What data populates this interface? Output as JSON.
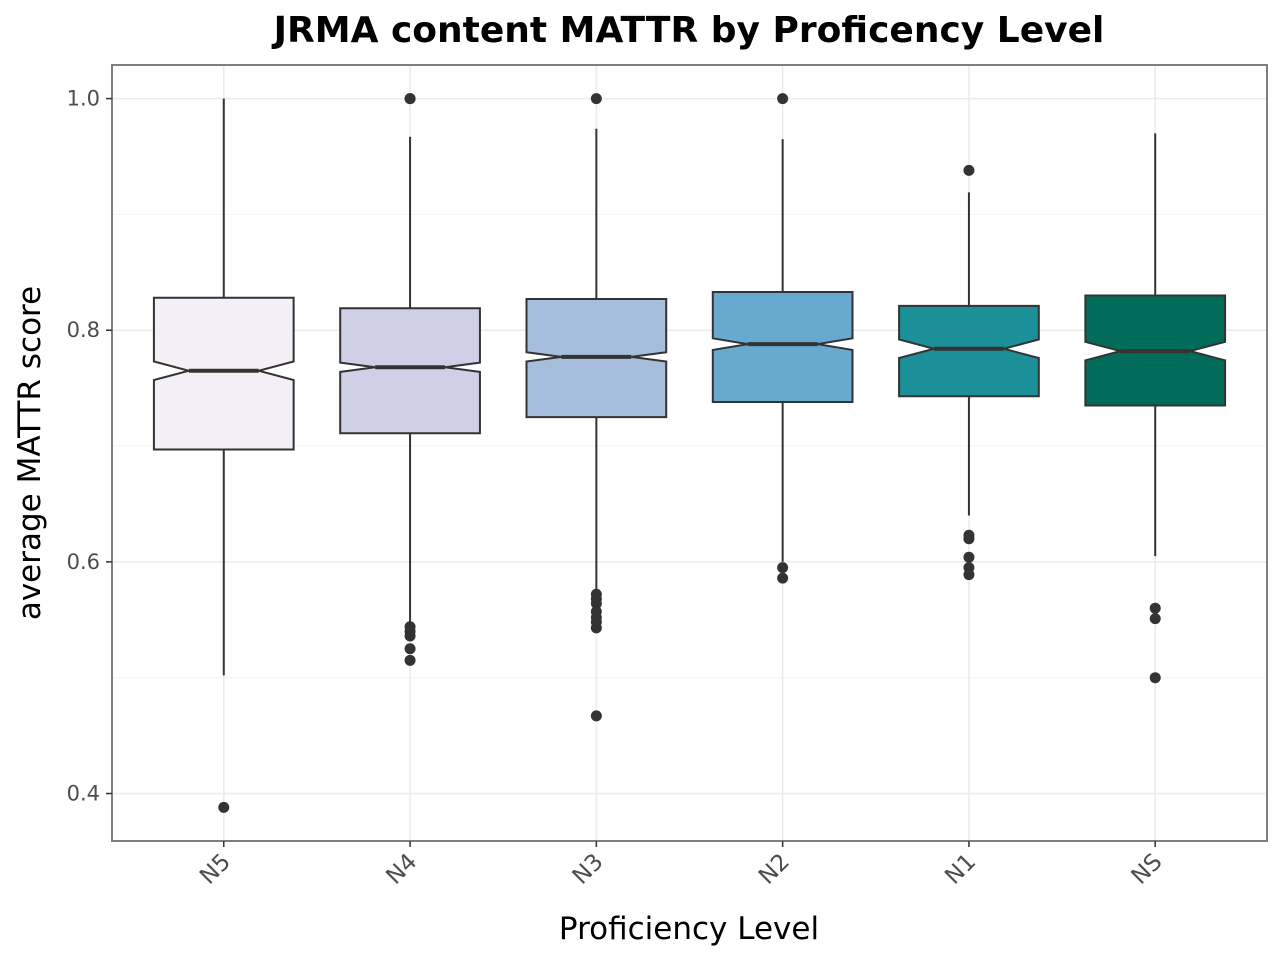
{
  "chart_data": {
    "type": "box",
    "title": "JRMA content MATTR by Proficency Level",
    "xlabel": "Proficiency Level",
    "ylabel": "average MATTR score",
    "ylim": [
      0.359,
      1.029
    ],
    "yticks": [
      0.4,
      0.6,
      0.8,
      1.0
    ],
    "y_tick_labels": [
      "0.4",
      "0.6",
      "0.8",
      "1.0"
    ],
    "grid": true,
    "notched": true,
    "categories": [
      "N5",
      "N4",
      "N3",
      "N2",
      "N1",
      "NS"
    ],
    "boxes": [
      {
        "category": "N5",
        "whisker_low": 0.502,
        "q1": 0.697,
        "median": 0.765,
        "q3": 0.828,
        "whisker_high": 1.0,
        "notch_low": 0.757,
        "notch_high": 0.773,
        "fill": "#f4eff7",
        "outliers": [
          0.388
        ]
      },
      {
        "category": "N4",
        "whisker_low": 0.548,
        "q1": 0.711,
        "median": 0.768,
        "q3": 0.819,
        "whisker_high": 0.967,
        "notch_low": 0.764,
        "notch_high": 0.772,
        "fill": "#cfd0e6",
        "outliers": [
          1.0,
          1.0,
          0.544,
          0.54,
          0.536,
          0.525,
          0.515
        ]
      },
      {
        "category": "N3",
        "whisker_low": 0.575,
        "q1": 0.725,
        "median": 0.777,
        "q3": 0.827,
        "whisker_high": 0.974,
        "notch_low": 0.773,
        "notch_high": 0.781,
        "fill": "#a6bddb",
        "outliers": [
          1.0,
          0.572,
          0.568,
          0.564,
          0.557,
          0.552,
          0.548,
          0.543,
          0.467
        ]
      },
      {
        "category": "N2",
        "whisker_low": 0.6,
        "q1": 0.738,
        "median": 0.788,
        "q3": 0.833,
        "whisker_high": 0.965,
        "notch_low": 0.783,
        "notch_high": 0.793,
        "fill": "#67a9cf",
        "outliers": [
          1.0,
          0.595,
          0.586
        ]
      },
      {
        "category": "N1",
        "whisker_low": 0.64,
        "q1": 0.743,
        "median": 0.784,
        "q3": 0.821,
        "whisker_high": 0.919,
        "notch_low": 0.776,
        "notch_high": 0.792,
        "fill": "#1c9099",
        "outliers": [
          0.938,
          0.623,
          0.62,
          0.604,
          0.595,
          0.589
        ]
      },
      {
        "category": "NS",
        "whisker_low": 0.605,
        "q1": 0.735,
        "median": 0.782,
        "q3": 0.83,
        "whisker_high": 0.97,
        "notch_low": 0.774,
        "notch_high": 0.79,
        "fill": "#016c59",
        "outliers": [
          0.56,
          0.551,
          0.5
        ]
      }
    ]
  }
}
